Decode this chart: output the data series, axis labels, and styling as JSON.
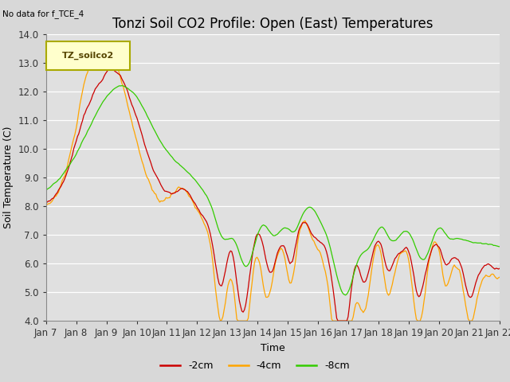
{
  "title": "Tonzi Soil CO2 Profile: Open (East) Temperatures",
  "top_left_text": "No data for f_TCE_4",
  "ylabel": "Soil Temperature (C)",
  "xlabel": "Time",
  "legend_label": "TZ_soilco2",
  "ylim": [
    4.0,
    14.0
  ],
  "yticks": [
    4.0,
    5.0,
    6.0,
    7.0,
    8.0,
    9.0,
    10.0,
    11.0,
    12.0,
    13.0,
    14.0
  ],
  "xtick_labels": [
    "Jan 7",
    "Jan 8",
    "Jan 9",
    "Jan 10",
    "Jan 11",
    "Jan 12",
    "Jan 13",
    "Jan 14",
    "Jan 15",
    "Jan 16",
    "Jan 17",
    "Jan 18",
    "Jan 19",
    "Jan 20",
    "Jan 21",
    "Jan 22"
  ],
  "color_2cm": "#cc0000",
  "color_4cm": "#ffa500",
  "color_8cm": "#33cc00",
  "background_color": "#e0e0e0",
  "label_2cm": "-2cm",
  "label_4cm": "-4cm",
  "label_8cm": "-8cm",
  "legend_box_color": "#ffffcc",
  "legend_box_edge": "#aaaa00",
  "title_fontsize": 12,
  "axis_fontsize": 9,
  "tick_fontsize": 8.5
}
